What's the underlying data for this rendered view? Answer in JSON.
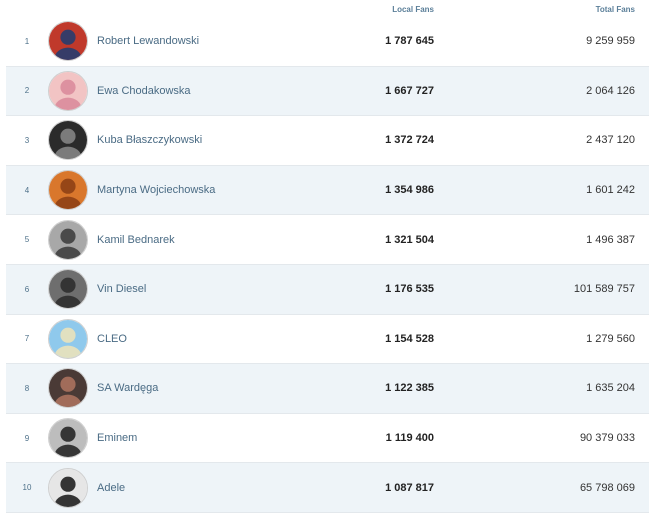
{
  "header": {
    "local_fans": "Local Fans",
    "total_fans": "Total Fans"
  },
  "rows": [
    {
      "rank": "1",
      "name": "Robert Lewandowski",
      "local_fans": "1 787 645",
      "total_fans": "9 259 959",
      "avatar_colors": [
        "#c0392b",
        "#1d3d73"
      ]
    },
    {
      "rank": "2",
      "name": "Ewa Chodakowska",
      "local_fans": "1 667 727",
      "total_fans": "2 064 126",
      "avatar_colors": [
        "#f2c4c4",
        "#d9889a"
      ]
    },
    {
      "rank": "3",
      "name": "Kuba Błaszczykowski",
      "local_fans": "1 372 724",
      "total_fans": "2 437 120",
      "avatar_colors": [
        "#2b2b2b",
        "#8a8a8a"
      ]
    },
    {
      "rank": "4",
      "name": "Martyna Wojciechowska",
      "local_fans": "1 354 986",
      "total_fans": "1 601 242",
      "avatar_colors": [
        "#d9772c",
        "#8a3d14"
      ]
    },
    {
      "rank": "5",
      "name": "Kamil Bednarek",
      "local_fans": "1 321 504",
      "total_fans": "1 496 387",
      "avatar_colors": [
        "#a8a8a8",
        "#3a3a3a"
      ]
    },
    {
      "rank": "6",
      "name": "Vin Diesel",
      "local_fans": "1 176 535",
      "total_fans": "101 589 757",
      "avatar_colors": [
        "#6e6e6e",
        "#2a2a2a"
      ]
    },
    {
      "rank": "7",
      "name": "CLEO",
      "local_fans": "1 154 528",
      "total_fans": "1 279 560",
      "avatar_colors": [
        "#8fc9ec",
        "#f0e4b8"
      ]
    },
    {
      "rank": "8",
      "name": "SA Wardęga",
      "local_fans": "1 122 385",
      "total_fans": "1 635 204",
      "avatar_colors": [
        "#4a3a36",
        "#b07560"
      ]
    },
    {
      "rank": "9",
      "name": "Eminem",
      "local_fans": "1 119 400",
      "total_fans": "90 379 033",
      "avatar_colors": [
        "#bdbdbd",
        "#1e1e1e"
      ]
    },
    {
      "rank": "10",
      "name": "Adele",
      "local_fans": "1 087 817",
      "total_fans": "65 798 069",
      "avatar_colors": [
        "#e6e6e6",
        "#141414"
      ]
    }
  ]
}
